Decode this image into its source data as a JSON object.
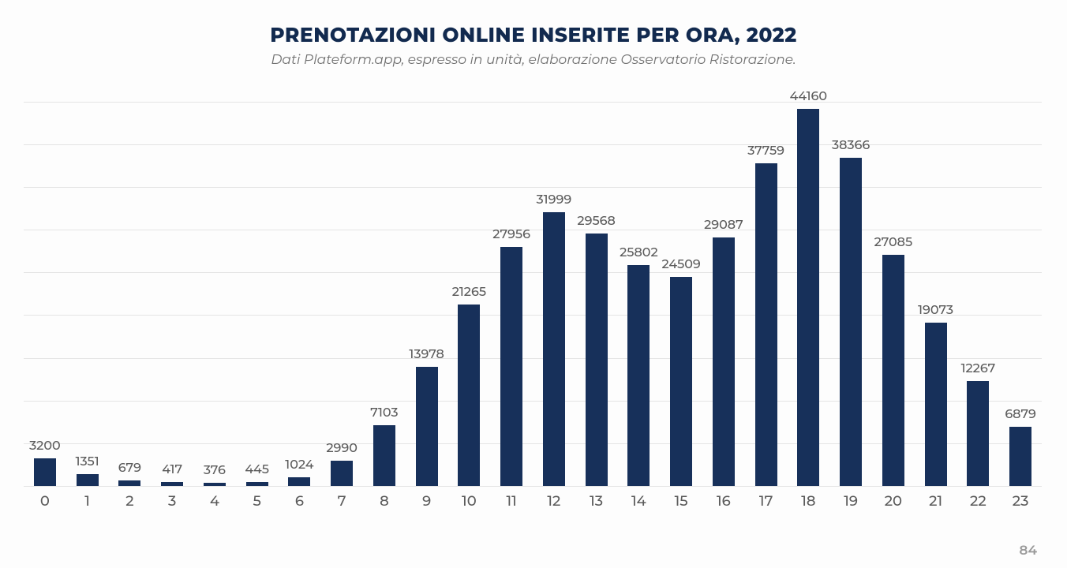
{
  "chart": {
    "type": "bar",
    "title": "PRENOTAZIONI ONLINE INSERITE PER ORA, 2022",
    "subtitle": "Dati Plateform.app, espresso in unità, elaborazione Osservatorio Ristorazione.",
    "title_color": "#122a4f",
    "title_fontsize": 25,
    "subtitle_color": "#707070",
    "subtitle_fontsize": 17,
    "categories": [
      "0",
      "1",
      "2",
      "3",
      "4",
      "5",
      "6",
      "7",
      "8",
      "9",
      "10",
      "11",
      "12",
      "13",
      "14",
      "15",
      "16",
      "17",
      "18",
      "19",
      "20",
      "21",
      "22",
      "23"
    ],
    "values": [
      3200,
      1351,
      679,
      417,
      376,
      445,
      1024,
      2990,
      7103,
      13978,
      21265,
      27956,
      31999,
      29568,
      25802,
      24509,
      29087,
      37759,
      44160,
      38366,
      27085,
      19073,
      12267,
      6879
    ],
    "bar_color": "#17305a",
    "bar_width_ratio": 0.52,
    "value_label_color": "#5b5b5b",
    "value_label_fontsize": 16,
    "x_tick_color": "#5b5b5b",
    "x_tick_fontsize": 18,
    "y_max": 48000,
    "gridlines": [
      0,
      5000,
      10000,
      15000,
      20000,
      25000,
      30000,
      35000,
      40000,
      45000
    ],
    "grid_color": "#e4e4e4",
    "background_color": "#fdfdfd"
  },
  "page_number": "84"
}
